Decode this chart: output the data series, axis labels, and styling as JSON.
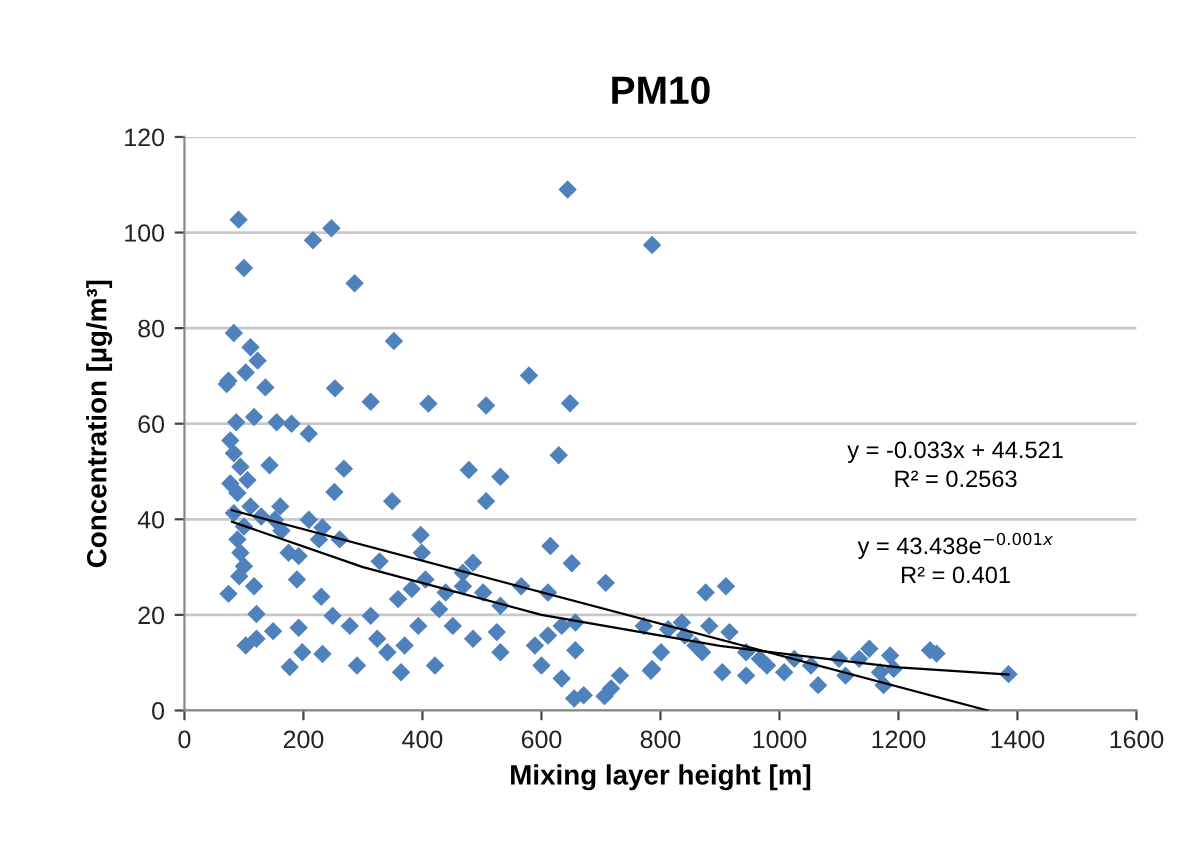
{
  "chart_data": {
    "type": "scatter",
    "title": "PM10",
    "xlabel": "Mixing layer height [m]",
    "ylabel": "Concentration [µg/m³]",
    "xlim": [
      0,
      1600
    ],
    "xticks": [
      0,
      200,
      400,
      600,
      800,
      1000,
      1200,
      1400,
      1600
    ],
    "ylim": [
      0,
      120
    ],
    "yticks": [
      0,
      20,
      40,
      60,
      80,
      100,
      120
    ],
    "grid": "y",
    "series": [
      {
        "marker": "diamond",
        "color": "#4f81bd",
        "x": [
          91,
          100,
          216,
          247,
          286,
          644,
          786,
          83,
          111,
          123,
          103,
          74,
          136,
          71,
          352,
          253,
          579,
          313,
          410,
          507,
          648,
          87,
          117,
          155,
          180,
          209,
          629,
          268,
          478,
          531,
          252,
          143,
          349,
          507,
          161,
          615,
          397,
          163,
          232,
          261,
          328,
          651,
          708,
          74,
          121,
          149,
          177,
          192,
          189,
          230,
          198,
          232,
          103,
          121,
          290,
          364,
          421,
          600,
          634,
          655,
          671,
          706,
          717,
          732,
          657,
          786,
          772,
          249,
          278,
          313,
          324,
          341,
          370,
          393,
          405,
          439,
          468,
          485,
          502,
          531,
          525,
          382,
          359,
          428,
          451,
          485,
          566,
          611,
          634,
          611,
          657,
          589,
          531,
          399,
          468,
          77,
          83,
          94,
          77,
          106,
          89,
          111,
          83,
          100,
          89,
          94,
          100,
          92,
          117,
          129,
          152,
          175,
          192,
          209,
          226,
          784,
          801,
          813,
          836,
          841,
          876,
          910,
          882,
          916,
          870,
          904,
          944,
          944,
          979,
          1008,
          1025,
          1065,
          1053,
          1100,
          1111,
          1134,
          1151,
          1169,
          1175,
          1186,
          1192,
          1253,
          1264,
          1385,
          859,
          967
        ],
        "values": [
          102.7,
          92.6,
          98.4,
          100.9,
          89.4,
          109,
          97.4,
          79,
          76,
          73.2,
          70.7,
          69,
          67.6,
          68.3,
          77.3,
          67.4,
          70.1,
          64.6,
          64.2,
          63.8,
          64.3,
          60.3,
          61.4,
          60.3,
          60,
          57.9,
          53.4,
          50.6,
          50.3,
          48.9,
          45.7,
          51.3,
          43.8,
          43.8,
          42.7,
          34.4,
          36.7,
          37.6,
          38.3,
          35.8,
          31.2,
          30.8,
          26.7,
          24.4,
          20.2,
          16.6,
          9.1,
          17.3,
          27.4,
          23.8,
          12.2,
          11.8,
          13.6,
          15,
          9.4,
          8,
          9.4,
          9.4,
          6.7,
          2.5,
          3.2,
          3,
          4.6,
          7.3,
          12.6,
          8.7,
          17.7,
          19.8,
          17.7,
          19.8,
          15,
          12.2,
          13.6,
          17.7,
          27.4,
          24.7,
          28.8,
          30.9,
          24.7,
          21.9,
          16.4,
          25.4,
          23.3,
          21.2,
          17.7,
          15,
          26,
          24.7,
          17.7,
          15.7,
          18.4,
          13.6,
          12.2,
          33,
          26,
          56.5,
          53.8,
          51,
          47.5,
          48.2,
          45.5,
          42.7,
          41.3,
          38.5,
          35.8,
          33,
          30.2,
          28.1,
          26,
          40.6,
          39.9,
          33,
          32.3,
          39.9,
          35.8,
          8.3,
          12.2,
          17,
          18.4,
          15.7,
          24.7,
          26,
          17.7,
          16.4,
          12.2,
          8,
          12.2,
          7.3,
          9.4,
          8,
          10.8,
          5.3,
          9.4,
          10.8,
          7.3,
          10.8,
          12.9,
          8,
          5.3,
          11.5,
          8.7,
          12.6,
          11.9,
          7.6,
          13.6,
          10.8
        ]
      },
      {
        "type": "line",
        "marker": "none",
        "color": "#000000",
        "x": [
          80,
          1350
        ],
        "values": [
          41.9,
          0
        ]
      },
      {
        "type": "line",
        "marker": "none",
        "color": "#000000",
        "x": [
          80,
          300,
          600,
          900,
          1200,
          1385
        ],
        "values": [
          39.5,
          30,
          20,
          13.5,
          9,
          7.5
        ]
      }
    ],
    "annotations": [
      "y = -0.033x + 44.521\nR² = 0.2563",
      "y = 43.438e$^{−0.001x}$\nR² = 0.401"
    ]
  }
}
